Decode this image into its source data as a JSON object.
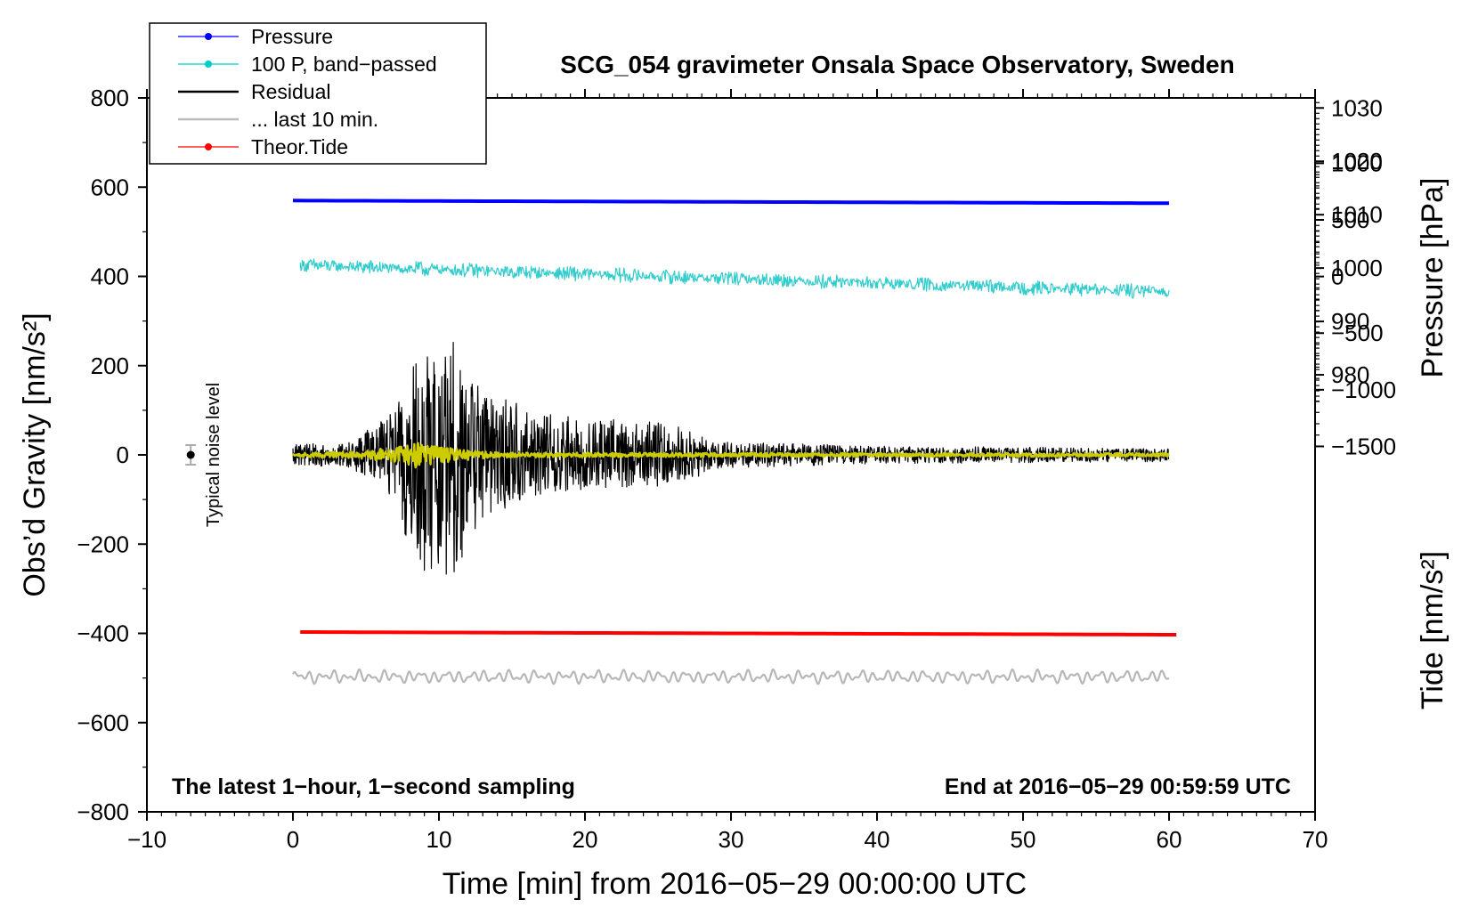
{
  "chart_data": {
    "type": "line",
    "title": "SCG_054 gravimeter Onsala Space Observatory, Sweden",
    "xlabel": "Time [min] from 2016−05−29 00:00:00 UTC",
    "ylabel_left": "Obs’d Gravity [nm/s²]",
    "ylabel_right_top": "Pressure [hPa]",
    "ylabel_right_bottom": "Tide [nm/s²]",
    "xlim": [
      -10,
      70
    ],
    "ylim_left": [
      -800,
      800
    ],
    "x_ticks": [
      -10,
      0,
      10,
      20,
      30,
      40,
      50,
      60,
      70
    ],
    "x_tick_labels": [
      "−10",
      "0",
      "10",
      "20",
      "30",
      "40",
      "50",
      "60",
      "70"
    ],
    "y_ticks_left": [
      800,
      600,
      400,
      200,
      0,
      -200,
      -400,
      -600,
      -800
    ],
    "y_tick_labels_left": [
      "800",
      "600",
      "400",
      "200",
      "0",
      "−200",
      "−400",
      "−600",
      "−800"
    ],
    "pressure_axis": {
      "ticks": [
        1030,
        1020,
        1010,
        1000,
        990,
        980
      ],
      "tick_labels": [
        "1030",
        "1020",
        "1010",
        "1000",
        "990",
        "980"
      ],
      "map_left_at_0": 965.0,
      "hpa_per_left_unit": 0.0836
    },
    "tide_axis": {
      "ticks": [
        1000,
        500,
        0,
        -500,
        -1000,
        -1500
      ],
      "tick_labels": [
        "1000",
        "500",
        "0",
        "−500",
        "−1000",
        "−1500"
      ],
      "map_left_at_0": -1575.0,
      "tide_per_left_unit": 3.94
    },
    "corner_left": "The latest 1−hour, 1−second sampling",
    "corner_right": "End at 2016−05−29 00:59:59 UTC",
    "noise_label": "Typical noise level",
    "noise_marker": {
      "x": -7,
      "y": 0,
      "err": 22
    },
    "legend": [
      {
        "label": "Pressure",
        "color": "#0000ff",
        "marker": true
      },
      {
        "label": "100 P, band−passed",
        "color": "#00cccc",
        "marker": true
      },
      {
        "label": "Residual",
        "color": "#000000",
        "marker": false
      },
      {
        "label": "... last 10 min.",
        "color": "#bbbbbb",
        "marker": false
      },
      {
        "label": "Theor.Tide",
        "color": "#ff0000",
        "marker": true
      }
    ],
    "series": [
      {
        "name": "Pressure",
        "color": "#0000ff",
        "width": 4,
        "x_start": 0,
        "x_end": 60,
        "y_start": 570,
        "y_end": 564,
        "noise": 0
      },
      {
        "name": "100 P, band−passed",
        "color": "#33cccc",
        "width": 1.2,
        "x_start": 0.5,
        "x_end": 60,
        "y_start": 425,
        "y_end": 365,
        "noise": 12
      },
      {
        "name": "Residual",
        "color": "#000000",
        "width": 1.2,
        "x_start": 0,
        "x_end": 60,
        "y_start": 0,
        "y_end": 0,
        "noise": 0,
        "envelope": [
          [
            0,
            25
          ],
          [
            3.5,
            25
          ],
          [
            5,
            55
          ],
          [
            7,
            110
          ],
          [
            8.5,
            260
          ],
          [
            10,
            260
          ],
          [
            11,
            280
          ],
          [
            12,
            200
          ],
          [
            13.5,
            140
          ],
          [
            16,
            110
          ],
          [
            20,
            85
          ],
          [
            25,
            75
          ],
          [
            27,
            60
          ],
          [
            29,
            30
          ],
          [
            40,
            20
          ],
          [
            60,
            15
          ]
        ]
      },
      {
        "name": "... last 10 min.",
        "color": "#b7b7b7",
        "width": 2.2,
        "x_start": 0,
        "x_end": 60,
        "y_start": -497,
        "y_end": -497,
        "noise": 0,
        "amp": 12
      },
      {
        "name": "Yellow filtered",
        "color": "#cccc00",
        "width": 2.5,
        "x_start": 0,
        "x_end": 60,
        "y_start": 0,
        "y_end": 0,
        "noise": 0,
        "envelope": [
          [
            0,
            4
          ],
          [
            4,
            8
          ],
          [
            7,
            18
          ],
          [
            8.5,
            30
          ],
          [
            9,
            25
          ],
          [
            11,
            14
          ],
          [
            14,
            6
          ],
          [
            20,
            5
          ],
          [
            60,
            4
          ]
        ]
      },
      {
        "name": "Theor.Tide",
        "color": "#ff0000",
        "width": 4,
        "x_start": 0.5,
        "x_end": 60.5,
        "y_start": -397,
        "y_end": -403,
        "noise": 0
      }
    ]
  }
}
